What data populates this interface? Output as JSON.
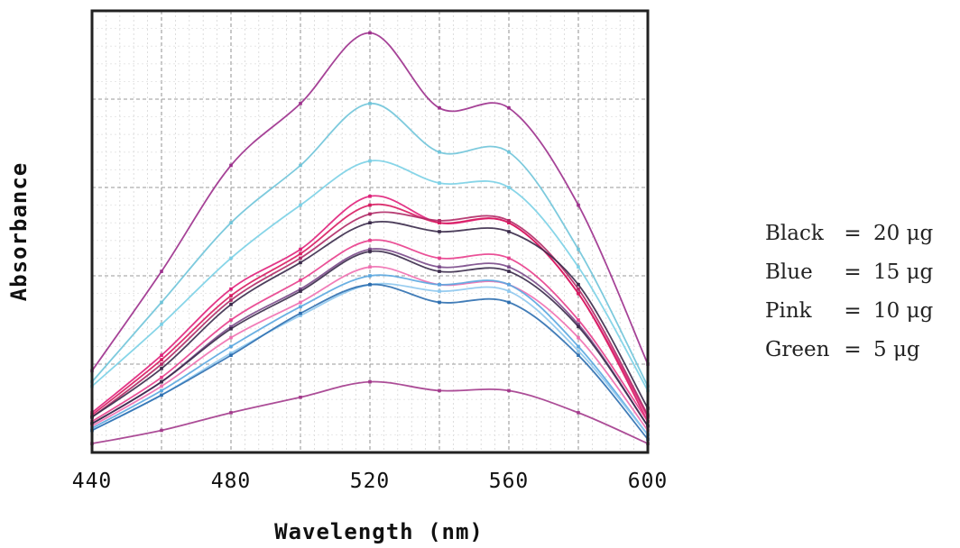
{
  "chart_data": {
    "type": "line",
    "xlabel": "Wavelength (nm)",
    "ylabel": "Absorbance",
    "xlim": [
      440,
      600
    ],
    "x_ticks": [
      "440",
      "480",
      "520",
      "560",
      "600"
    ],
    "y_tick_labels": false,
    "grid": true,
    "legend_position": "right",
    "legend": [
      {
        "label": "Black",
        "eq": "=",
        "value": "20 μg"
      },
      {
        "label": "Blue",
        "eq": "=",
        "value": "15 μg"
      },
      {
        "label": "Pink",
        "eq": "=",
        "value": "10 μg"
      },
      {
        "label": "Green",
        "eq": "=",
        "value": "5 μg"
      }
    ],
    "x": [
      440,
      460,
      480,
      500,
      520,
      540,
      560,
      580,
      600
    ],
    "series": [
      {
        "color": "#9c2f8c",
        "values": [
          0.185,
          0.41,
          0.65,
          0.79,
          0.95,
          0.78,
          0.78,
          0.56,
          0.2
        ]
      },
      {
        "color": "#6fc4d9",
        "values": [
          0.16,
          0.34,
          0.52,
          0.65,
          0.79,
          0.68,
          0.68,
          0.46,
          0.15
        ]
      },
      {
        "color": "#7ad0e6",
        "values": [
          0.15,
          0.29,
          0.44,
          0.56,
          0.66,
          0.61,
          0.6,
          0.42,
          0.14
        ]
      },
      {
        "color": "#e0207a",
        "values": [
          0.09,
          0.22,
          0.37,
          0.46,
          0.58,
          0.52,
          0.52,
          0.36,
          0.08
        ]
      },
      {
        "color": "#d81b60",
        "values": [
          0.085,
          0.21,
          0.355,
          0.45,
          0.56,
          0.52,
          0.52,
          0.36,
          0.07
        ]
      },
      {
        "color": "#b02a66",
        "values": [
          0.08,
          0.2,
          0.345,
          0.44,
          0.54,
          0.525,
          0.525,
          0.37,
          0.085
        ]
      },
      {
        "color": "#3a2a4a",
        "values": [
          0.08,
          0.19,
          0.335,
          0.43,
          0.52,
          0.5,
          0.5,
          0.38,
          0.1
        ]
      },
      {
        "color": "#e83e8c",
        "values": [
          0.07,
          0.17,
          0.3,
          0.39,
          0.48,
          0.44,
          0.44,
          0.3,
          0.07
        ]
      },
      {
        "color": "#7a4a8a",
        "values": [
          0.065,
          0.16,
          0.285,
          0.37,
          0.46,
          0.42,
          0.42,
          0.29,
          0.06
        ]
      },
      {
        "color": "#3a2a4a",
        "values": [
          0.065,
          0.16,
          0.28,
          0.365,
          0.455,
          0.41,
          0.41,
          0.285,
          0.06
        ]
      },
      {
        "color": "#f06fb0",
        "values": [
          0.06,
          0.15,
          0.26,
          0.34,
          0.42,
          0.38,
          0.38,
          0.26,
          0.05
        ]
      },
      {
        "color": "#5aa7e0",
        "values": [
          0.055,
          0.14,
          0.24,
          0.33,
          0.4,
          0.38,
          0.38,
          0.24,
          0.04
        ]
      },
      {
        "color": "#8ec8ee",
        "values": [
          0.05,
          0.13,
          0.225,
          0.31,
          0.38,
          0.365,
          0.365,
          0.23,
          0.04
        ]
      },
      {
        "color": "#2e6fb0",
        "values": [
          0.05,
          0.13,
          0.22,
          0.315,
          0.38,
          0.34,
          0.34,
          0.22,
          0.03
        ]
      },
      {
        "color": "#a33a8c",
        "values": [
          0.02,
          0.05,
          0.09,
          0.125,
          0.16,
          0.14,
          0.14,
          0.09,
          0.02
        ]
      }
    ]
  }
}
